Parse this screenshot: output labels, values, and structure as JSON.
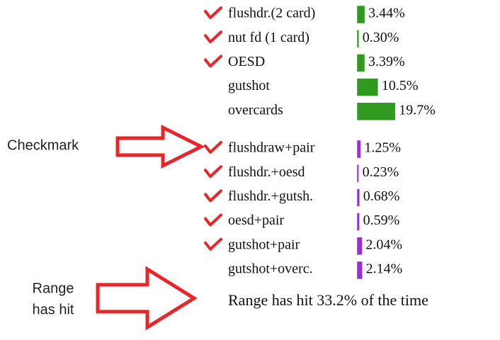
{
  "groups": [
    {
      "color": "#2f9a1f",
      "rows": [
        {
          "label": "flushdr.(2 card)",
          "checked": true,
          "value": 3.44,
          "value_label": "3.44%"
        },
        {
          "label": "nut fd (1 card)",
          "checked": true,
          "value": 0.3,
          "value_label": "0.30%"
        },
        {
          "label": "OESD",
          "checked": true,
          "value": 3.39,
          "value_label": "3.39%"
        },
        {
          "label": "gutshot",
          "checked": false,
          "value": 10.5,
          "value_label": "10.5%"
        },
        {
          "label": "overcards",
          "checked": false,
          "value": 19.7,
          "value_label": "19.7%"
        }
      ]
    },
    {
      "color": "#9b2fd3",
      "rows": [
        {
          "label": "flushdraw+pair",
          "checked": true,
          "value": 1.25,
          "value_label": "1.25%"
        },
        {
          "label": "flushdr.+oesd",
          "checked": true,
          "value": 0.23,
          "value_label": "0.23%"
        },
        {
          "label": "flushdr.+gutsh.",
          "checked": true,
          "value": 0.68,
          "value_label": "0.68%"
        },
        {
          "label": "oesd+pair",
          "checked": true,
          "value": 0.59,
          "value_label": "0.59%"
        },
        {
          "label": "gutshot+pair",
          "checked": true,
          "value": 2.04,
          "value_label": "2.04%"
        },
        {
          "label": "gutshot+overc.",
          "checked": false,
          "value": 2.14,
          "value_label": "2.14%"
        }
      ]
    }
  ],
  "summary": "Range has hit 33.2% of the time",
  "annotations": [
    "Checkmark",
    "Range",
    "has hit"
  ]
}
